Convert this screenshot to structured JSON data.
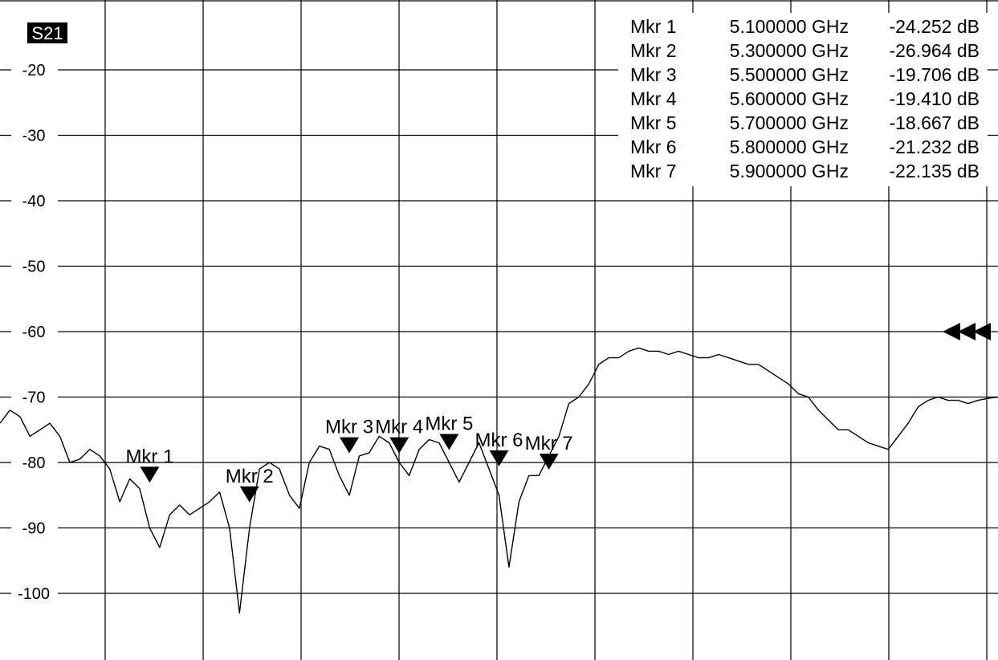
{
  "chart_data": {
    "type": "line",
    "trace_name": "S21",
    "ylim": [
      -110,
      -20
    ],
    "y_ticks": [
      -20,
      -30,
      -40,
      -50,
      -60,
      -70,
      -80,
      -90,
      -100
    ],
    "y_tick_labels": [
      "-20",
      "-30",
      "-40",
      "-50",
      "-60",
      "-70",
      "-80",
      "-90",
      "-100"
    ],
    "grid": true,
    "x_divisions": 10,
    "series": [
      {
        "x": [
          0,
          1,
          2,
          3,
          4,
          5,
          6,
          7,
          8,
          9,
          10,
          11,
          12,
          13,
          14,
          15,
          16,
          17,
          18,
          19,
          20,
          21,
          22,
          23,
          24,
          25,
          26,
          27,
          28,
          29,
          30,
          31,
          32,
          33,
          34,
          35,
          36,
          37,
          38,
          39,
          40,
          41,
          42,
          43,
          44,
          45,
          46,
          47,
          48,
          49,
          50,
          51,
          52,
          53,
          54,
          55,
          56,
          57,
          58,
          59,
          60,
          61,
          62,
          63,
          64,
          65,
          66,
          67,
          68,
          69,
          70,
          71,
          72,
          73,
          74,
          75,
          76,
          77,
          78,
          79,
          80,
          81,
          82,
          83,
          84,
          85,
          86,
          87,
          88,
          89,
          90,
          91,
          92,
          93,
          94,
          95,
          96,
          97,
          98,
          99,
          100
        ],
        "values": [
          -74,
          -72,
          -73,
          -76,
          -75,
          -74,
          -76,
          -80,
          -79.5,
          -78,
          -79,
          -81,
          -86,
          -82.5,
          -84,
          -90,
          -93,
          -88,
          -86.5,
          -88,
          -87,
          -86,
          -84.5,
          -90,
          -103,
          -90,
          -81,
          -80,
          -81,
          -85,
          -87,
          -80,
          -77.5,
          -78,
          -82,
          -85,
          -79,
          -78.5,
          -76,
          -77,
          -80,
          -82,
          -78,
          -76.5,
          -77,
          -80,
          -83,
          -80,
          -77,
          -81,
          -85,
          -96,
          -86,
          -82,
          -82,
          -79,
          -76,
          -71,
          -70,
          -68,
          -65,
          -64,
          -64,
          -63,
          -62.5,
          -63,
          -63,
          -63.5,
          -63,
          -63.5,
          -64,
          -64,
          -63.5,
          -64,
          -64.5,
          -65,
          -65,
          -66,
          -67,
          -68,
          -69.5,
          -70,
          -72,
          -73.5,
          -75,
          -75,
          -76,
          -77,
          -77.5,
          -78,
          -76,
          -74,
          -71.5,
          -70.5,
          -70,
          -70.5,
          -70.5,
          -71,
          -70.5,
          -70.2,
          -70
        ]
      }
    ],
    "markers": [
      {
        "label": "Mkr 1",
        "freq": "5.100000 GHz",
        "value": "-24.252 dB",
        "pos": 15,
        "level": -82
      },
      {
        "label": "Mkr 2",
        "freq": "5.300000 GHz",
        "value": "-26.964 dB",
        "pos": 25,
        "level": -85
      },
      {
        "label": "Mkr 3",
        "freq": "5.500000 GHz",
        "value": "-19.706 dB",
        "pos": 35,
        "level": -77.5
      },
      {
        "label": "Mkr 4",
        "freq": "5.600000 GHz",
        "value": "-19.410 dB",
        "pos": 40,
        "level": -77.5
      },
      {
        "label": "Mkr 5",
        "freq": "5.700000 GHz",
        "value": "-18.667 dB",
        "pos": 45,
        "level": -77
      },
      {
        "label": "Mkr 6",
        "freq": "5.800000 GHz",
        "value": "-21.232 dB",
        "pos": 50,
        "level": -79.5
      },
      {
        "label": "Mkr 7",
        "freq": "5.900000 GHz",
        "value": "-22.135 dB",
        "pos": 55,
        "level": -80
      }
    ],
    "reference_level": -60
  }
}
